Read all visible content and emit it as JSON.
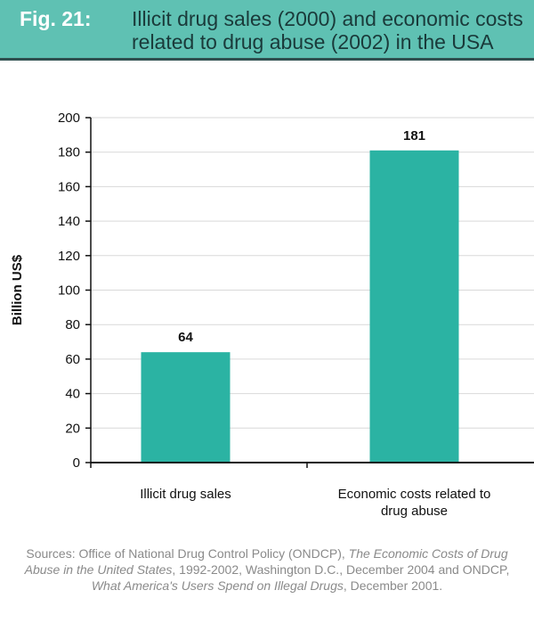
{
  "figure": {
    "number": "Fig. 21:",
    "title": "Illicit drug sales (2000) and economic costs\nrelated to drug abuse (2002) in the USA"
  },
  "colors": {
    "header_bg": "#5fc1b3",
    "bar": "#2bb3a3",
    "grid": "#d9d9d9",
    "axis": "#111111"
  },
  "chart_data": {
    "type": "bar",
    "categories": [
      [
        "Illicit drug sales"
      ],
      [
        "Economic costs related to",
        "drug abuse"
      ]
    ],
    "values": [
      64,
      181
    ],
    "data_labels": [
      "64",
      "181"
    ],
    "ylabel": "Billion US$",
    "ylim": [
      0,
      200
    ],
    "yticks": [
      0,
      20,
      40,
      60,
      80,
      100,
      120,
      140,
      160,
      180,
      200
    ],
    "grid": true
  },
  "footer": {
    "parts": [
      {
        "text": "Sources: Office of National Drug Control Policy (ONDCP), ",
        "italic": false
      },
      {
        "text": "The Economic Costs of Drug Abuse in the United States",
        "italic": true
      },
      {
        "text": ", 1992-2002, Washington D.C., December 2004 and ONDCP, ",
        "italic": false
      },
      {
        "text": "What America's Users Spend on Illegal Drugs",
        "italic": true
      },
      {
        "text": ", December 2001.",
        "italic": false
      }
    ]
  }
}
